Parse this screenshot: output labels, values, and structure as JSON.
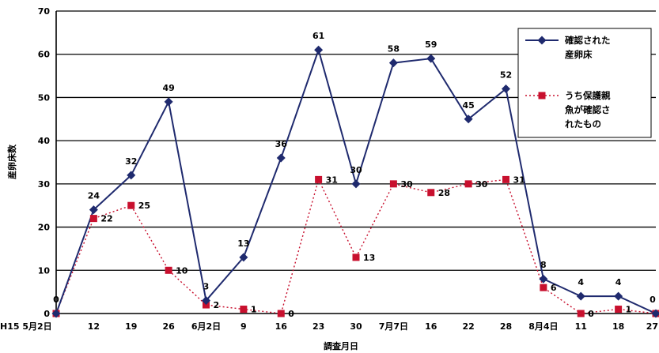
{
  "chart_data": {
    "type": "line",
    "title": "",
    "xlabel": "調査月日",
    "ylabel": "産卵床数",
    "ylim": [
      0,
      70
    ],
    "yticks": [
      "0",
      "10",
      "20",
      "30",
      "40",
      "50",
      "60",
      "70"
    ],
    "grid": "horizontal",
    "legend_position": "top-right",
    "categories": [
      "H15 5月2日",
      "12",
      "19",
      "26",
      "6月2日",
      "9",
      "16",
      "23",
      "30",
      "7月7日",
      "16",
      "22",
      "28",
      "8月4日",
      "11",
      "18",
      "27"
    ],
    "series": [
      {
        "name": "確認された産卵床",
        "legend_lines": [
          "確認された",
          "産卵床"
        ],
        "color": "#1f2a6e",
        "marker": "diamond",
        "line_style": "solid",
        "values": [
          0,
          24,
          32,
          49,
          3,
          13,
          36,
          61,
          30,
          58,
          59,
          45,
          52,
          8,
          4,
          4,
          0
        ],
        "labels": [
          "0",
          "24",
          "32",
          "49",
          "3",
          "13",
          "36",
          "61",
          "30",
          "58",
          "59",
          "45",
          "52",
          "8",
          "4",
          "4",
          "0"
        ]
      },
      {
        "name": "うち保護親魚が確認されたもの",
        "legend_lines": [
          "うち保護親",
          "魚が確認さ",
          "れたもの"
        ],
        "color": "#c8102e",
        "marker": "square",
        "line_style": "dotted",
        "values": [
          0,
          22,
          25,
          10,
          2,
          1,
          0,
          31,
          13,
          30,
          28,
          30,
          31,
          6,
          0,
          1,
          0
        ],
        "labels": [
          "",
          "22",
          "25",
          "10",
          "2",
          "1",
          "0",
          "31",
          "13",
          "30",
          "28",
          "30",
          "31",
          "6",
          "0",
          "1",
          ""
        ]
      }
    ]
  }
}
